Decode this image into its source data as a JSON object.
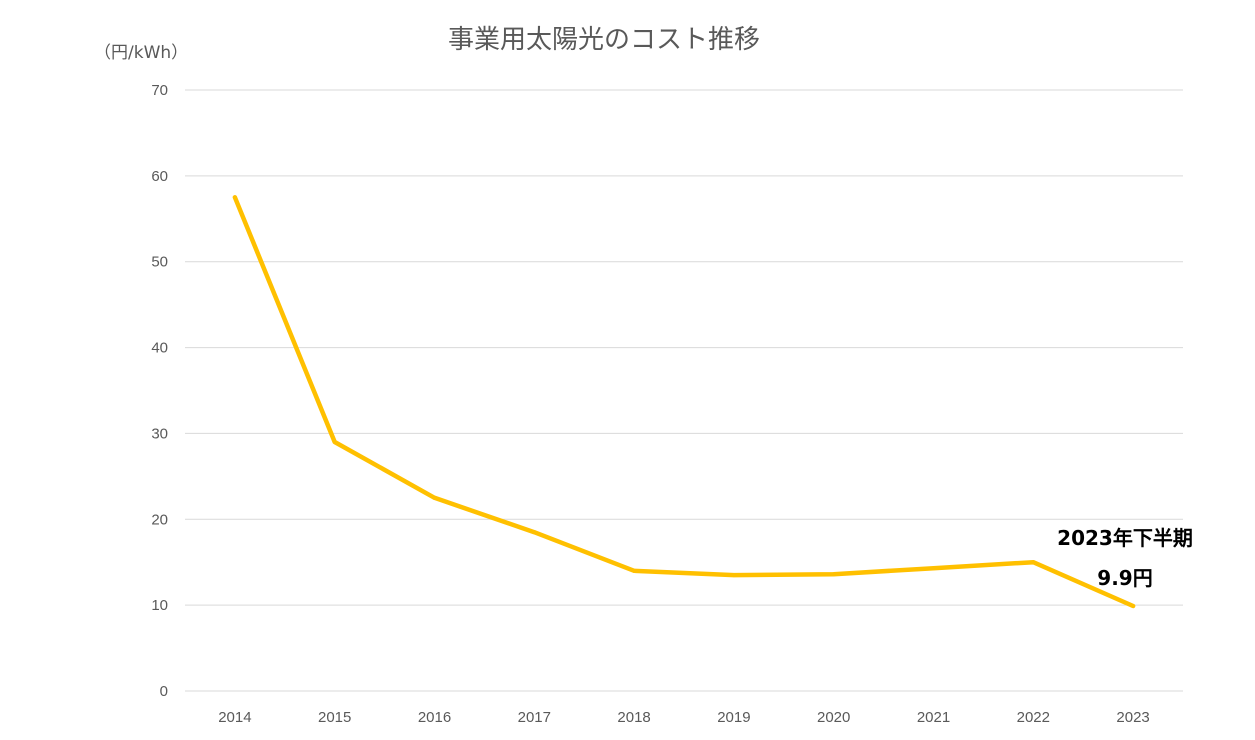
{
  "chart_data": {
    "type": "line",
    "title": "事業用太陽光のコスト推移",
    "ylabel": "（円/kWh）",
    "xlabel": "",
    "categories": [
      "2014",
      "2015",
      "2016",
      "2017",
      "2018",
      "2019",
      "2020",
      "2021",
      "2022",
      "2023"
    ],
    "series": [
      {
        "values": [
          57.5,
          29.0,
          22.5,
          18.5,
          14.0,
          13.5,
          13.6,
          14.3,
          15.0,
          9.9
        ],
        "color": "#ffc000"
      }
    ],
    "ylim": [
      0,
      70
    ],
    "yticks": [
      "0",
      "10",
      "20",
      "30",
      "40",
      "50",
      "60",
      "70"
    ],
    "grid": true,
    "legend": "none",
    "annotations": {
      "line1": "2023年下半期",
      "line2": "9.9円"
    }
  }
}
